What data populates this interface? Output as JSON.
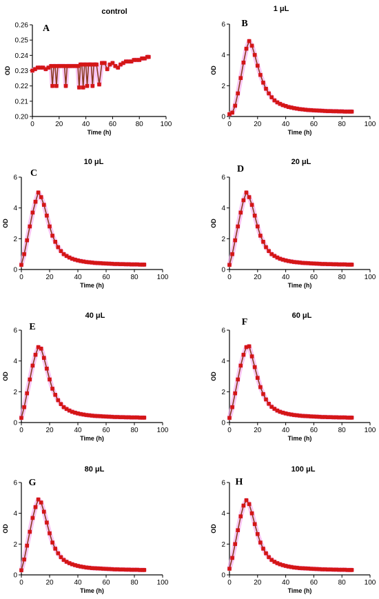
{
  "colors": {
    "marker": "#d41616",
    "line": "#8a3a1f",
    "halo": "#f6a8ee",
    "axis": "#000000"
  },
  "chart_data": [
    {
      "panel": "A",
      "title": "control",
      "type": "line",
      "xlabel": "Time (h)",
      "ylabel": "OD",
      "xlim": [
        0,
        100
      ],
      "ylim": [
        0.2,
        0.26
      ],
      "xticks": [
        "0",
        "20",
        "40",
        "60",
        "80",
        "100"
      ],
      "yticks": [
        "0.20",
        "0.21",
        "0.22",
        "0.23",
        "0.24",
        "0.25",
        "0.26"
      ],
      "series": [
        {
          "x": [
            0,
            2,
            4,
            6,
            8,
            10,
            12,
            14,
            15,
            16,
            17,
            18,
            19,
            20,
            22,
            24,
            25,
            26,
            27,
            28,
            30,
            32,
            34,
            35,
            36,
            37,
            38,
            39,
            40,
            41,
            42,
            43,
            44,
            45,
            46,
            47,
            48,
            50,
            52,
            54,
            56,
            58,
            60,
            62,
            64,
            66,
            68,
            70,
            72,
            74,
            76,
            78,
            80,
            82,
            84,
            86,
            87
          ],
          "values": [
            0.23,
            0.231,
            0.232,
            0.232,
            0.232,
            0.231,
            0.232,
            0.233,
            0.22,
            0.233,
            0.233,
            0.22,
            0.233,
            0.233,
            0.233,
            0.233,
            0.22,
            0.233,
            0.233,
            0.233,
            0.233,
            0.233,
            0.233,
            0.219,
            0.234,
            0.234,
            0.219,
            0.234,
            0.234,
            0.22,
            0.234,
            0.234,
            0.234,
            0.22,
            0.234,
            0.234,
            0.234,
            0.221,
            0.235,
            0.235,
            0.231,
            0.234,
            0.235,
            0.233,
            0.232,
            0.234,
            0.235,
            0.236,
            0.236,
            0.236,
            0.237,
            0.237,
            0.237,
            0.238,
            0.238,
            0.239,
            0.239
          ]
        }
      ]
    },
    {
      "panel": "B",
      "title": "1 μL",
      "type": "line",
      "xlabel": "Time (h)",
      "ylabel": "OD",
      "xlim": [
        0,
        100
      ],
      "ylim": [
        0,
        6
      ],
      "xticks": [
        "0",
        "20",
        "40",
        "60",
        "80",
        "100"
      ],
      "yticks": [
        "0",
        "2",
        "4",
        "6"
      ],
      "series": [
        {
          "x": [
            0,
            2,
            4,
            6,
            8,
            10,
            12,
            14,
            16,
            18,
            20,
            22,
            24,
            26,
            28,
            30,
            32,
            34,
            36,
            38,
            40,
            42,
            44,
            46,
            48,
            50,
            52,
            54,
            56,
            58,
            60,
            62,
            64,
            66,
            68,
            70,
            72,
            74,
            76,
            78,
            80,
            82,
            84,
            86,
            87
          ],
          "values": [
            0.15,
            0.25,
            0.7,
            1.5,
            2.5,
            3.5,
            4.4,
            4.9,
            4.6,
            4.0,
            3.3,
            2.7,
            2.2,
            1.8,
            1.5,
            1.25,
            1.05,
            0.92,
            0.82,
            0.74,
            0.68,
            0.62,
            0.58,
            0.54,
            0.51,
            0.48,
            0.46,
            0.44,
            0.42,
            0.41,
            0.4,
            0.39,
            0.38,
            0.37,
            0.36,
            0.35,
            0.35,
            0.34,
            0.34,
            0.33,
            0.33,
            0.32,
            0.32,
            0.32,
            0.32
          ]
        }
      ]
    },
    {
      "panel": "C",
      "title": "10 μL",
      "type": "line",
      "xlabel": "Time (h)",
      "ylabel": "OD",
      "xlim": [
        0,
        100
      ],
      "ylim": [
        0,
        6
      ],
      "xticks": [
        "0",
        "20",
        "40",
        "60",
        "80",
        "100"
      ],
      "yticks": [
        "0",
        "2",
        "4",
        "6"
      ],
      "series": [
        {
          "x": [
            0,
            2,
            4,
            6,
            8,
            10,
            12,
            14,
            16,
            18,
            20,
            22,
            24,
            26,
            28,
            30,
            32,
            34,
            36,
            38,
            40,
            42,
            44,
            46,
            48,
            50,
            52,
            54,
            56,
            58,
            60,
            62,
            64,
            66,
            68,
            70,
            72,
            74,
            76,
            78,
            80,
            82,
            84,
            86,
            87
          ],
          "values": [
            0.3,
            1.0,
            1.9,
            2.8,
            3.7,
            4.4,
            5.0,
            4.7,
            4.2,
            3.5,
            2.8,
            2.2,
            1.8,
            1.45,
            1.2,
            1.0,
            0.88,
            0.78,
            0.7,
            0.64,
            0.59,
            0.55,
            0.52,
            0.49,
            0.47,
            0.45,
            0.43,
            0.42,
            0.41,
            0.4,
            0.39,
            0.38,
            0.37,
            0.36,
            0.36,
            0.35,
            0.35,
            0.34,
            0.34,
            0.33,
            0.33,
            0.33,
            0.32,
            0.32,
            0.32
          ]
        }
      ]
    },
    {
      "panel": "D",
      "title": "20 μL",
      "type": "line",
      "xlabel": "Time (h)",
      "ylabel": "OD",
      "xlim": [
        0,
        100
      ],
      "ylim": [
        0,
        6
      ],
      "xticks": [
        "0",
        "20",
        "40",
        "60",
        "80",
        "100"
      ],
      "yticks": [
        "0",
        "2",
        "4",
        "6"
      ],
      "series": [
        {
          "x": [
            0,
            2,
            4,
            6,
            8,
            10,
            12,
            14,
            16,
            18,
            20,
            22,
            24,
            26,
            28,
            30,
            32,
            34,
            36,
            38,
            40,
            42,
            44,
            46,
            48,
            50,
            52,
            54,
            56,
            58,
            60,
            62,
            64,
            66,
            68,
            70,
            72,
            74,
            76,
            78,
            80,
            82,
            84,
            86,
            87
          ],
          "values": [
            0.3,
            1.0,
            1.9,
            2.8,
            3.7,
            4.5,
            5.0,
            4.7,
            4.2,
            3.5,
            2.8,
            2.2,
            1.8,
            1.45,
            1.2,
            1.0,
            0.88,
            0.78,
            0.7,
            0.64,
            0.59,
            0.55,
            0.52,
            0.49,
            0.47,
            0.45,
            0.43,
            0.42,
            0.41,
            0.4,
            0.39,
            0.38,
            0.37,
            0.36,
            0.36,
            0.35,
            0.35,
            0.34,
            0.34,
            0.33,
            0.33,
            0.33,
            0.32,
            0.32,
            0.32
          ]
        }
      ]
    },
    {
      "panel": "E",
      "title": "40 μL",
      "type": "line",
      "xlabel": "Time (h)",
      "ylabel": "OD",
      "xlim": [
        0,
        100
      ],
      "ylim": [
        0,
        6
      ],
      "xticks": [
        "0",
        "20",
        "40",
        "60",
        "80",
        "100"
      ],
      "yticks": [
        "0",
        "2",
        "4",
        "6"
      ],
      "series": [
        {
          "x": [
            0,
            2,
            4,
            6,
            8,
            10,
            12,
            14,
            16,
            18,
            20,
            22,
            24,
            26,
            28,
            30,
            32,
            34,
            36,
            38,
            40,
            42,
            44,
            46,
            48,
            50,
            52,
            54,
            56,
            58,
            60,
            62,
            64,
            66,
            68,
            70,
            72,
            74,
            76,
            78,
            80,
            82,
            84,
            86,
            87
          ],
          "values": [
            0.3,
            1.0,
            1.9,
            2.8,
            3.7,
            4.4,
            4.9,
            4.8,
            4.2,
            3.5,
            2.8,
            2.2,
            1.8,
            1.45,
            1.2,
            1.0,
            0.88,
            0.78,
            0.7,
            0.64,
            0.59,
            0.55,
            0.52,
            0.49,
            0.47,
            0.45,
            0.43,
            0.42,
            0.41,
            0.4,
            0.39,
            0.38,
            0.37,
            0.36,
            0.36,
            0.35,
            0.35,
            0.34,
            0.34,
            0.33,
            0.33,
            0.33,
            0.32,
            0.32,
            0.32
          ]
        }
      ]
    },
    {
      "panel": "F",
      "title": "60 μL",
      "type": "line",
      "xlabel": "Time (h)",
      "ylabel": "OD",
      "xlim": [
        0,
        100
      ],
      "ylim": [
        0,
        6
      ],
      "xticks": [
        "0",
        "20",
        "40",
        "60",
        "80",
        "100"
      ],
      "yticks": [
        "0",
        "2",
        "4",
        "6"
      ],
      "series": [
        {
          "x": [
            0,
            2,
            4,
            6,
            8,
            10,
            12,
            14,
            16,
            18,
            20,
            22,
            24,
            26,
            28,
            30,
            32,
            34,
            36,
            38,
            40,
            42,
            44,
            46,
            48,
            50,
            52,
            54,
            56,
            58,
            60,
            62,
            64,
            66,
            68,
            70,
            72,
            74,
            76,
            78,
            80,
            82,
            84,
            86,
            87
          ],
          "values": [
            0.3,
            1.0,
            1.9,
            2.8,
            3.7,
            4.4,
            4.9,
            4.95,
            4.3,
            3.6,
            2.9,
            2.3,
            1.85,
            1.5,
            1.22,
            1.02,
            0.89,
            0.78,
            0.7,
            0.64,
            0.59,
            0.55,
            0.52,
            0.49,
            0.47,
            0.45,
            0.43,
            0.42,
            0.41,
            0.4,
            0.39,
            0.38,
            0.37,
            0.36,
            0.36,
            0.35,
            0.35,
            0.34,
            0.34,
            0.33,
            0.33,
            0.33,
            0.32,
            0.32,
            0.32
          ]
        }
      ]
    },
    {
      "panel": "G",
      "title": "80 μL",
      "type": "line",
      "xlabel": "Time (h)",
      "ylabel": "OD",
      "xlim": [
        0,
        100
      ],
      "ylim": [
        0,
        6
      ],
      "xticks": [
        "0",
        "20",
        "40",
        "60",
        "80",
        "100"
      ],
      "yticks": [
        "0",
        "2",
        "4",
        "6"
      ],
      "series": [
        {
          "x": [
            0,
            2,
            4,
            6,
            8,
            10,
            12,
            14,
            16,
            18,
            20,
            22,
            24,
            26,
            28,
            30,
            32,
            34,
            36,
            38,
            40,
            42,
            44,
            46,
            48,
            50,
            52,
            54,
            56,
            58,
            60,
            62,
            64,
            66,
            68,
            70,
            72,
            74,
            76,
            78,
            80,
            82,
            84,
            86,
            87
          ],
          "values": [
            0.3,
            1.0,
            1.9,
            2.8,
            3.7,
            4.4,
            4.9,
            4.7,
            4.1,
            3.4,
            2.7,
            2.1,
            1.7,
            1.4,
            1.15,
            0.97,
            0.85,
            0.76,
            0.69,
            0.63,
            0.58,
            0.54,
            0.51,
            0.48,
            0.46,
            0.44,
            0.43,
            0.42,
            0.41,
            0.4,
            0.39,
            0.38,
            0.37,
            0.36,
            0.36,
            0.35,
            0.35,
            0.34,
            0.34,
            0.33,
            0.33,
            0.33,
            0.32,
            0.32,
            0.32
          ]
        }
      ]
    },
    {
      "panel": "H",
      "title": "100 μL",
      "type": "line",
      "xlabel": "Time (h)",
      "ylabel": "OD",
      "xlim": [
        0,
        100
      ],
      "ylim": [
        0,
        6
      ],
      "xticks": [
        "0",
        "20",
        "40",
        "60",
        "80",
        "100"
      ],
      "yticks": [
        "0",
        "2",
        "4",
        "6"
      ],
      "series": [
        {
          "x": [
            0,
            2,
            4,
            6,
            8,
            10,
            12,
            14,
            16,
            18,
            20,
            22,
            24,
            26,
            28,
            30,
            32,
            34,
            36,
            38,
            40,
            42,
            44,
            46,
            48,
            50,
            52,
            54,
            56,
            58,
            60,
            62,
            64,
            66,
            68,
            70,
            72,
            74,
            76,
            78,
            80,
            82,
            84,
            86,
            87
          ],
          "values": [
            0.4,
            1.1,
            2.0,
            2.9,
            3.8,
            4.5,
            4.85,
            4.6,
            4.0,
            3.3,
            2.65,
            2.1,
            1.7,
            1.4,
            1.15,
            0.97,
            0.85,
            0.76,
            0.69,
            0.63,
            0.58,
            0.54,
            0.51,
            0.48,
            0.46,
            0.44,
            0.43,
            0.42,
            0.41,
            0.4,
            0.39,
            0.38,
            0.37,
            0.36,
            0.36,
            0.35,
            0.35,
            0.34,
            0.34,
            0.33,
            0.33,
            0.33,
            0.32,
            0.32,
            0.32
          ]
        }
      ]
    }
  ]
}
